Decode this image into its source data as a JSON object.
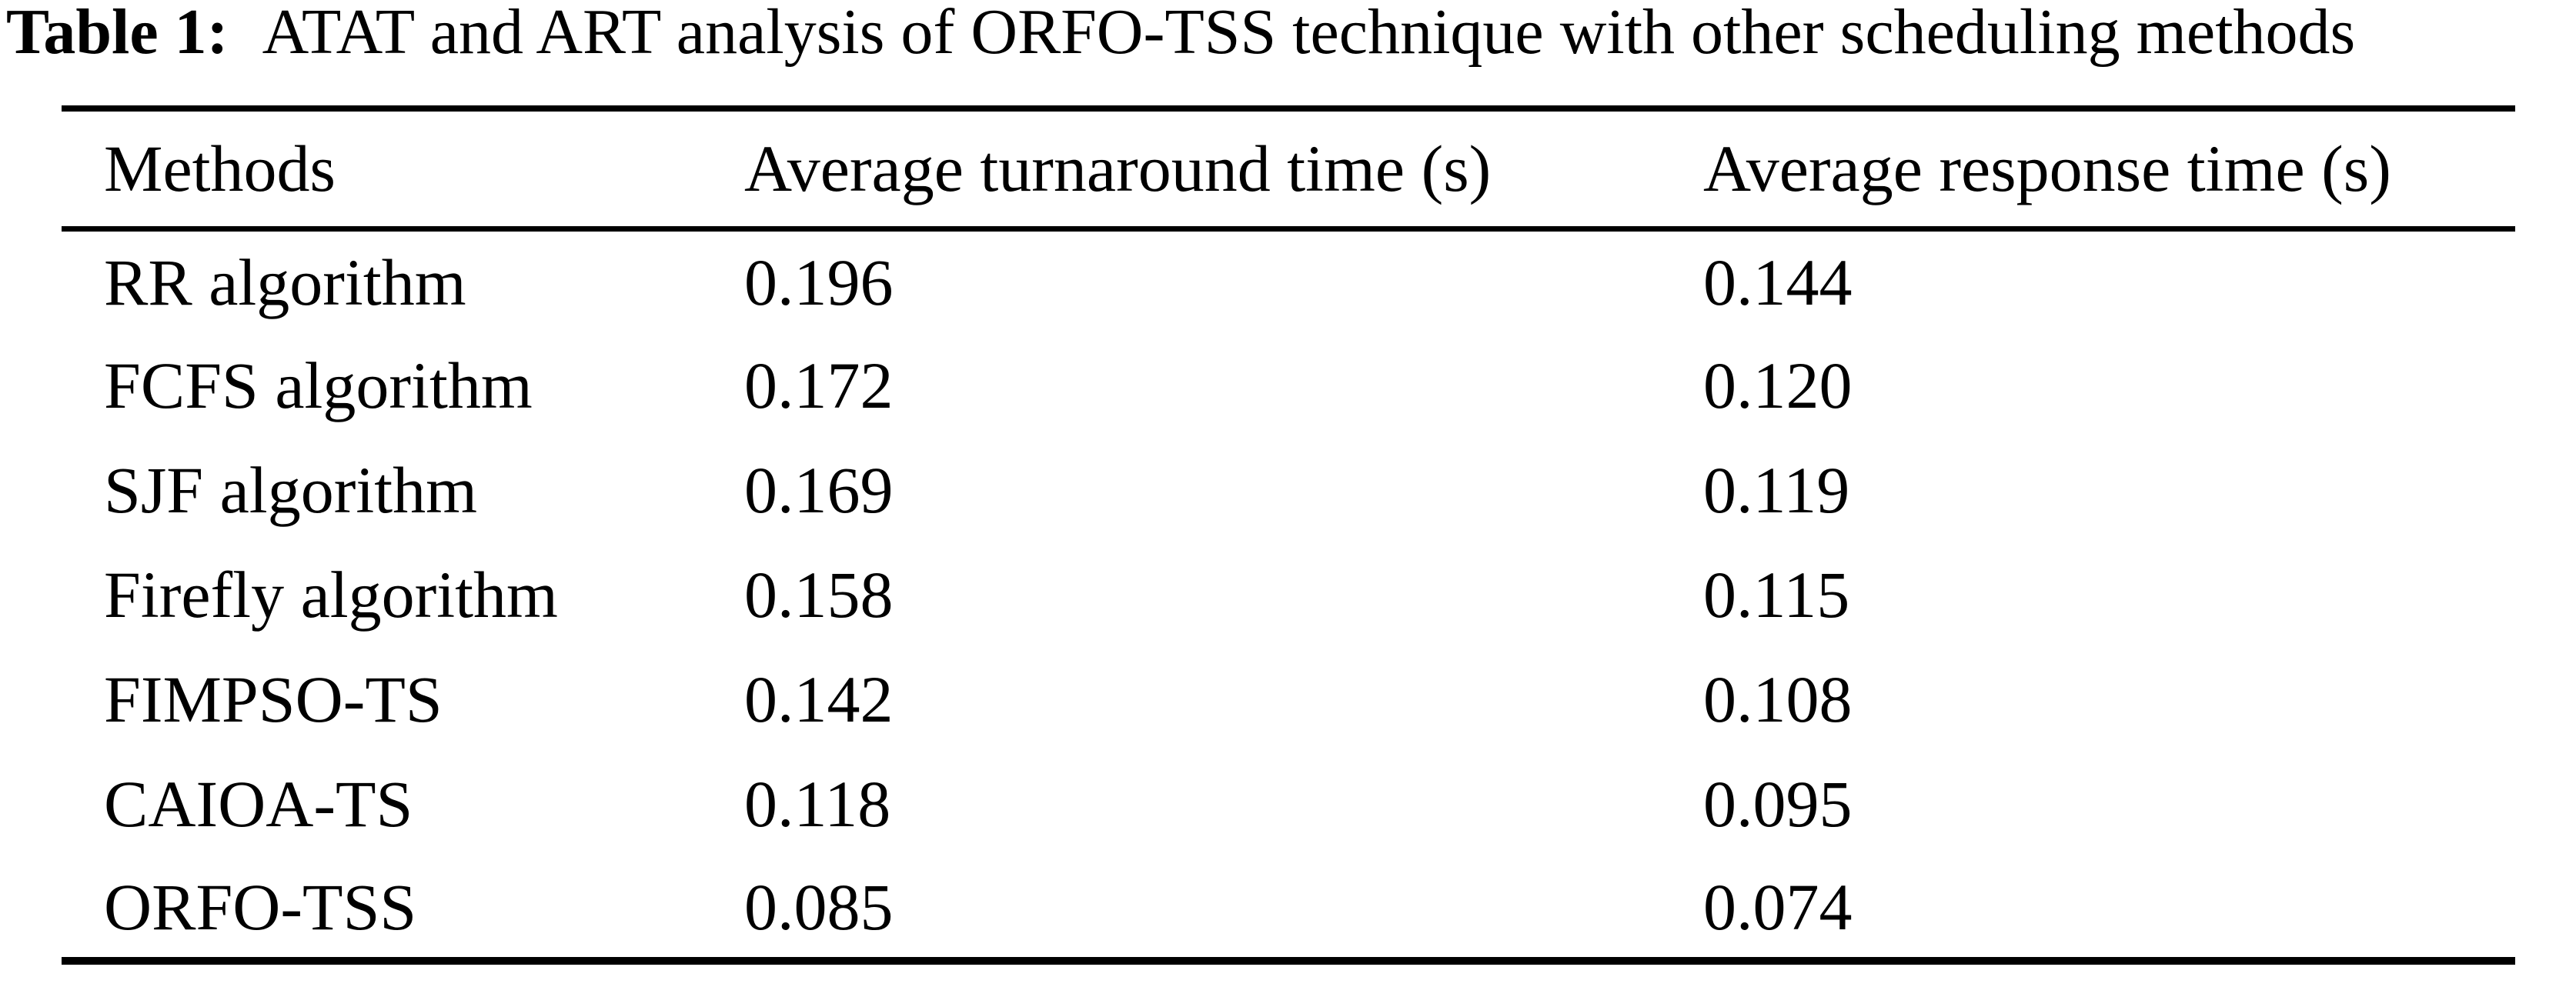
{
  "caption": {
    "label": "Table 1:",
    "text": "ATAT and ART analysis of ORFO-TSS technique with other scheduling methods"
  },
  "table": {
    "columns": {
      "methods": "Methods",
      "atat": "Average turnaround time (s)",
      "art": "Average response time (s)"
    },
    "rows": [
      {
        "method": "RR algorithm",
        "atat": "0.196",
        "art": "0.144"
      },
      {
        "method": "FCFS algorithm",
        "atat": "0.172",
        "art": "0.120"
      },
      {
        "method": "SJF algorithm",
        "atat": "0.169",
        "art": "0.119"
      },
      {
        "method": "Firefly algorithm",
        "atat": "0.158",
        "art": "0.115"
      },
      {
        "method": "FIMPSO-TS",
        "atat": "0.142",
        "art": "0.108"
      },
      {
        "method": "CAIOA-TS",
        "atat": "0.118",
        "art": "0.095"
      },
      {
        "method": "ORFO-TSS",
        "atat": "0.085",
        "art": "0.074"
      }
    ]
  },
  "colors": {
    "text": "#000000",
    "background": "#ffffff",
    "rule": "#000000"
  }
}
